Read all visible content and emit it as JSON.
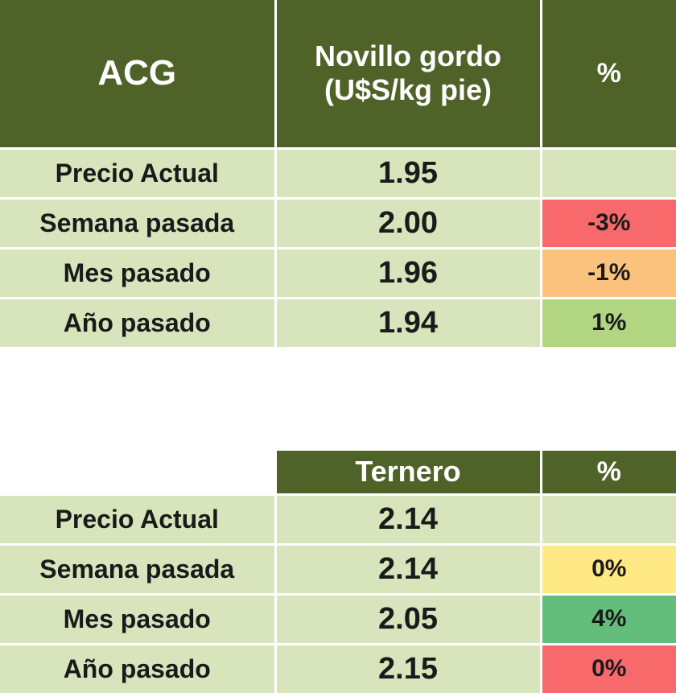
{
  "table1": {
    "header": {
      "col1": "ACG",
      "col2": "Novillo gordo (U$S/kg pie)",
      "col3": "%"
    },
    "rows": [
      {
        "label": "Precio Actual",
        "price": "1.95",
        "pct": "",
        "color": "#d8e4bc"
      },
      {
        "label": "Semana pasada",
        "price": "2.00",
        "pct": "-3%",
        "color": "#f8696b"
      },
      {
        "label": "Mes pasado",
        "price": "1.96",
        "pct": "-1%",
        "color": "#fbc27d"
      },
      {
        "label": "Año pasado",
        "price": "1.94",
        "pct": "1%",
        "color": "#b1d580"
      }
    ]
  },
  "table2": {
    "header": {
      "col1": "",
      "col2": "Ternero",
      "col3": "%"
    },
    "rows": [
      {
        "label": "Precio Actual",
        "price": "2.14",
        "pct": "",
        "color": "#d8e4bc"
      },
      {
        "label": "Semana pasada",
        "price": "2.14",
        "pct": "0%",
        "color": "#ffe984"
      },
      {
        "label": "Mes pasado",
        "price": "2.05",
        "pct": "4%",
        "color": "#63be7b"
      },
      {
        "label": "Año pasado",
        "price": "2.15",
        "pct": "0%",
        "color": "#f8696b"
      }
    ]
  },
  "colors": {
    "header_bg": "#4f6228",
    "header_text": "#ffffff",
    "row_bg": "#d8e4bc"
  }
}
